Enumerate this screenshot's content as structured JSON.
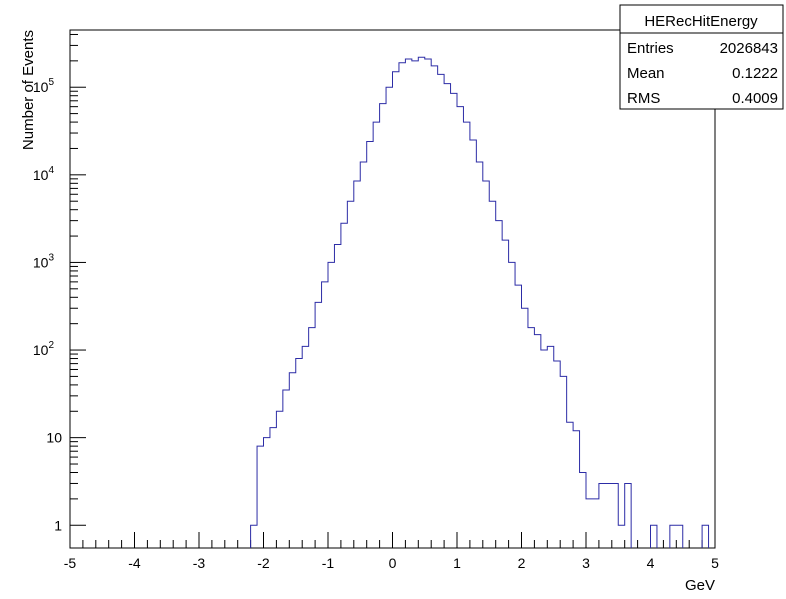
{
  "chart_data": {
    "type": "histogram",
    "title": "HERecHitEnergy",
    "xlabel": "GeV",
    "ylabel": "Number of Events",
    "xlim": [
      -5,
      5
    ],
    "ylim": [
      0.55,
      450000
    ],
    "y_scale": "log",
    "x_ticks": [
      "-5",
      "-4",
      "-3",
      "-2",
      "-1",
      "0",
      "1",
      "2",
      "3",
      "4",
      "5"
    ],
    "y_ticks": [
      {
        "value": 1,
        "label": "1"
      },
      {
        "value": 10,
        "label": "10"
      },
      {
        "value": 100,
        "label": "10",
        "exp": "2"
      },
      {
        "value": 1000,
        "label": "10",
        "exp": "3"
      },
      {
        "value": 10000,
        "label": "10",
        "exp": "4"
      },
      {
        "value": 100000,
        "label": "10",
        "exp": "5"
      }
    ],
    "line_color": "#2c2ca6",
    "bin_low": -2.2,
    "bin_width": 0.1,
    "counts": [
      1,
      8,
      10,
      13,
      20,
      35,
      55,
      80,
      110,
      180,
      350,
      600,
      1000,
      1600,
      2800,
      5000,
      8500,
      14000,
      24000,
      40000,
      65000,
      100000,
      150000,
      190000,
      210000,
      200000,
      220000,
      210000,
      175000,
      140000,
      110000,
      85000,
      60000,
      40000,
      25000,
      14000,
      8500,
      5000,
      3000,
      1800,
      1000,
      550,
      300,
      180,
      150,
      100,
      110,
      75,
      50,
      15,
      12,
      4,
      2,
      2,
      3,
      3,
      3,
      1,
      3,
      1,
      2,
      5,
      3,
      0,
      0,
      0,
      0,
      0,
      0,
      0,
      0,
      0,
      0,
      0,
      0,
      0,
      0,
      0,
      0,
      0,
      0,
      0,
      0,
      0,
      0,
      0,
      0,
      0,
      0,
      0,
      0,
      0,
      0,
      0,
      0,
      0,
      0,
      0,
      0,
      0,
      0,
      0,
      0,
      0,
      0,
      0,
      0,
      0,
      0,
      0,
      0,
      0,
      0,
      0,
      0,
      0,
      0,
      0,
      0,
      0,
      0,
      0,
      0,
      0,
      0,
      0,
      0,
      0,
      0,
      0,
      0,
      0,
      0,
      0,
      0,
      0,
      0,
      0,
      0,
      0,
      0,
      0,
      0,
      0,
      0,
      0,
      0,
      0,
      0,
      0,
      0,
      0,
      0,
      0,
      0,
      0,
      0,
      0,
      0,
      0,
      0,
      0,
      0,
      0,
      0,
      0,
      0,
      0,
      0,
      0,
      0,
      0,
      0,
      0,
      0,
      0,
      0,
      0,
      0,
      0,
      0,
      0,
      0,
      0,
      0,
      0,
      0,
      0,
      0,
      0,
      0,
      0,
      0,
      0,
      0,
      0,
      0,
      0,
      0,
      0,
      0,
      0,
      0,
      0,
      0,
      0,
      0,
      0,
      0,
      0,
      0,
      0,
      0,
      0,
      0,
      0,
      0,
      0,
      0,
      0,
      0,
      0,
      0,
      0,
      0,
      0,
      0,
      0,
      0,
      0,
      0,
      0,
      0,
      0,
      0,
      0,
      0,
      0,
      0,
      0,
      0,
      0,
      0,
      0,
      0,
      0,
      0,
      0,
      0,
      0,
      0,
      0,
      0,
      0,
      0,
      0,
      0,
      0
    ],
    "tail_points": [
      {
        "x_low": 4.0,
        "x_high": 4.1,
        "count": 1
      },
      {
        "x_low": 4.3,
        "x_high": 4.5,
        "count": 1
      },
      {
        "x_low": 4.8,
        "x_high": 4.9,
        "count": 1
      }
    ],
    "stats": {
      "title": "HERecHitEnergy",
      "rows": [
        {
          "label": "Entries",
          "value": "2026843"
        },
        {
          "label": "Mean",
          "value": "0.1222"
        },
        {
          "label": "RMS",
          "value": "0.4009"
        }
      ]
    }
  }
}
